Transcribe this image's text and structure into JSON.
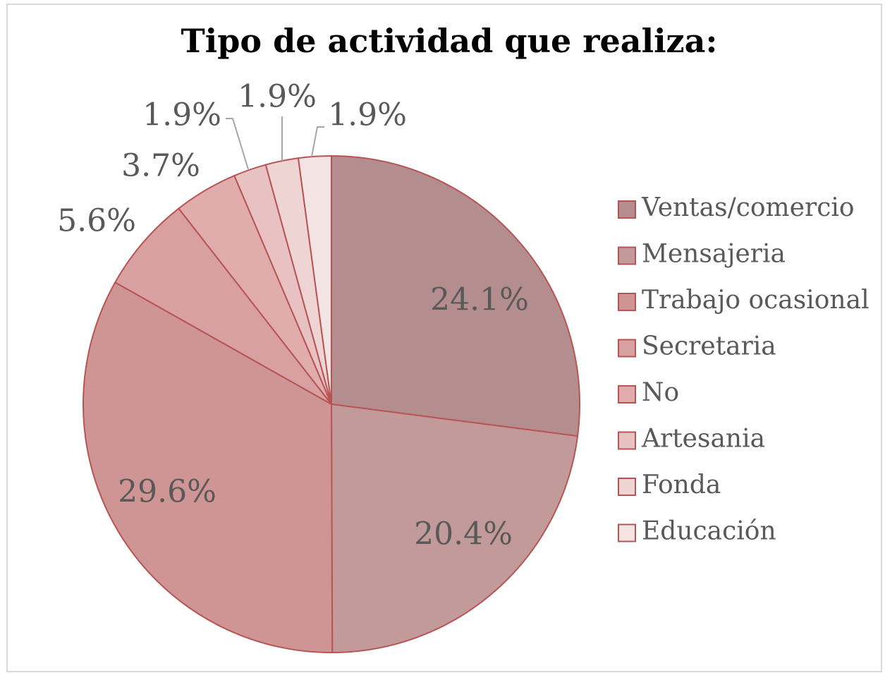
{
  "chart_data": {
    "type": "pie",
    "title": "Tipo de actividad que realiza:",
    "categories": [
      "Ventas/comercio",
      "Mensajeria",
      "Trabajo ocasional",
      "Secretaria",
      "No",
      "Artesania",
      "Fonda",
      "Educación"
    ],
    "values": [
      24.1,
      20.4,
      29.6,
      5.6,
      3.7,
      1.9,
      1.9,
      1.9
    ],
    "value_labels": [
      "24.1%",
      "20.4%",
      "29.6%",
      "5.6%",
      "3.7%",
      "1.9%",
      "1.9%",
      "1.9%"
    ],
    "colors": [
      "#b48e8e",
      "#c39a9a",
      "#cf9494",
      "#d8a0a0",
      "#e0acac",
      "#e8c2c2",
      "#efd4d4",
      "#f5e4e4"
    ],
    "legend": "right"
  }
}
